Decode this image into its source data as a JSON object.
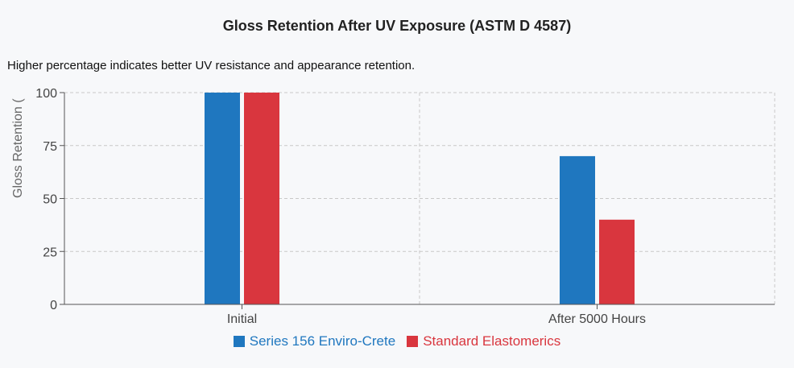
{
  "title": "Gloss Retention After UV Exposure (ASTM D 4587)",
  "subtitle": "Higher percentage indicates better UV resistance and appearance retention.",
  "chart_data": {
    "type": "bar",
    "title": "Gloss Retention After UV Exposure (ASTM D 4587)",
    "subtitle": "Higher percentage indicates better UV resistance and appearance retention.",
    "xlabel": "",
    "ylabel": "Gloss Retention (",
    "categories": [
      "Initial",
      "After 5000 Hours"
    ],
    "series": [
      {
        "name": "Series 156 Enviro-Crete",
        "values": [
          100,
          70
        ],
        "color": "#1f77bf"
      },
      {
        "name": "Standard Elastomerics",
        "values": [
          100,
          40
        ],
        "color": "#d9363e"
      }
    ],
    "ylim": [
      0,
      100
    ],
    "yticks": [
      0,
      25,
      50,
      75,
      100
    ],
    "grid": true,
    "legend_position": "bottom-center"
  }
}
